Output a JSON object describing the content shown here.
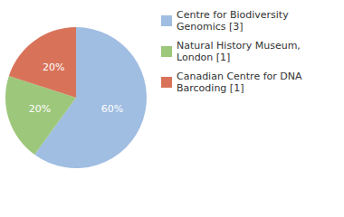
{
  "chart_data": {
    "type": "pie",
    "categories": [
      "Centre for Biodiversity Genomics [3]",
      "Natural History Museum, London [1]",
      "Canadian Centre for DNA Barcoding [1]"
    ],
    "values": [
      60,
      20,
      20
    ],
    "value_labels": [
      "60%",
      "20%",
      "20%"
    ],
    "colors": [
      "#a0bde2",
      "#9dc77b",
      "#d8735a"
    ],
    "data_labels": true,
    "legend": "top-right"
  }
}
